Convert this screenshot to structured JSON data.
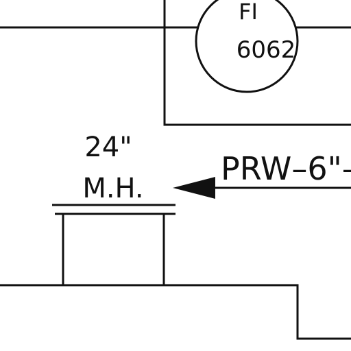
{
  "instrument": {
    "tag_letters": "FI",
    "tag_number": "6062"
  },
  "manhole": {
    "size": "24\"",
    "abbr": "M.H."
  },
  "pipe_label": {
    "text": "PRW–6\"–"
  },
  "colors": {
    "ink": "#111111",
    "paper": "#ffffff"
  }
}
